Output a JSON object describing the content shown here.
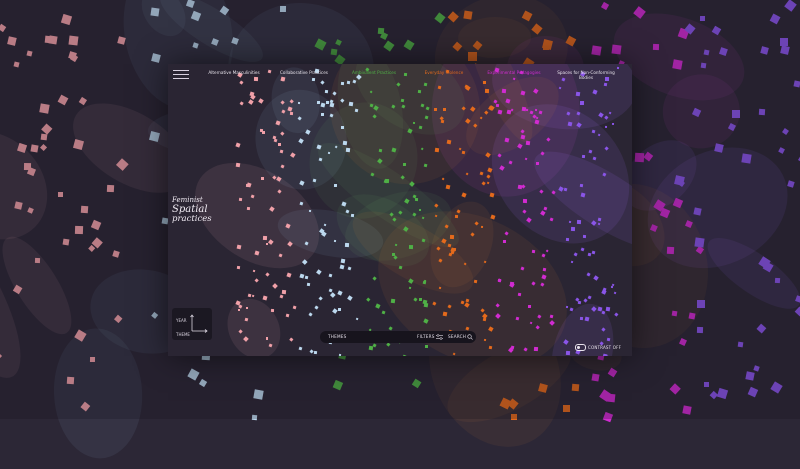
{
  "colors": {
    "background": "#2c2736",
    "panel": "#2a2533",
    "alternative_masculinities": "#f0a0a8",
    "collaborative_practices": "#bcd8ee",
    "ambivalent_practices": "#4fb046",
    "everyday_violence": "#e46a1c",
    "experimental_pedagogies": "#d12bd1",
    "spaces_non_conforming_bodies": "#8a55e8"
  },
  "header": {
    "menu_icon": "hamburger-icon",
    "themes": [
      {
        "label": "Alternative Masculinities",
        "color": "#e8e4ec"
      },
      {
        "label": "Collaborative Practices",
        "color": "#e8e4ec"
      },
      {
        "label": "Ambivalent Practices",
        "color": "#4fb046"
      },
      {
        "label": "Everyday Violence",
        "color": "#e46a1c"
      },
      {
        "label": "Experimental Pedagogies",
        "color": "#d12bd1"
      },
      {
        "label": "Spaces for Non-Conforming Bodies",
        "color": "#e8e4ec"
      }
    ]
  },
  "logo": {
    "line1": "Feminist",
    "line2": "Spatial",
    "line3": "practices"
  },
  "axis_widget": {
    "y_label": "YEAR",
    "x_label": "THEME"
  },
  "bottom_bar": {
    "themes_label": "THEMES",
    "filters_label": "FILTERS",
    "filters_icon": "sliders-icon",
    "search_label": "SEARCH",
    "search_icon": "search-icon"
  },
  "contrast": {
    "label": "CONTRAST OFF",
    "state": "off"
  }
}
